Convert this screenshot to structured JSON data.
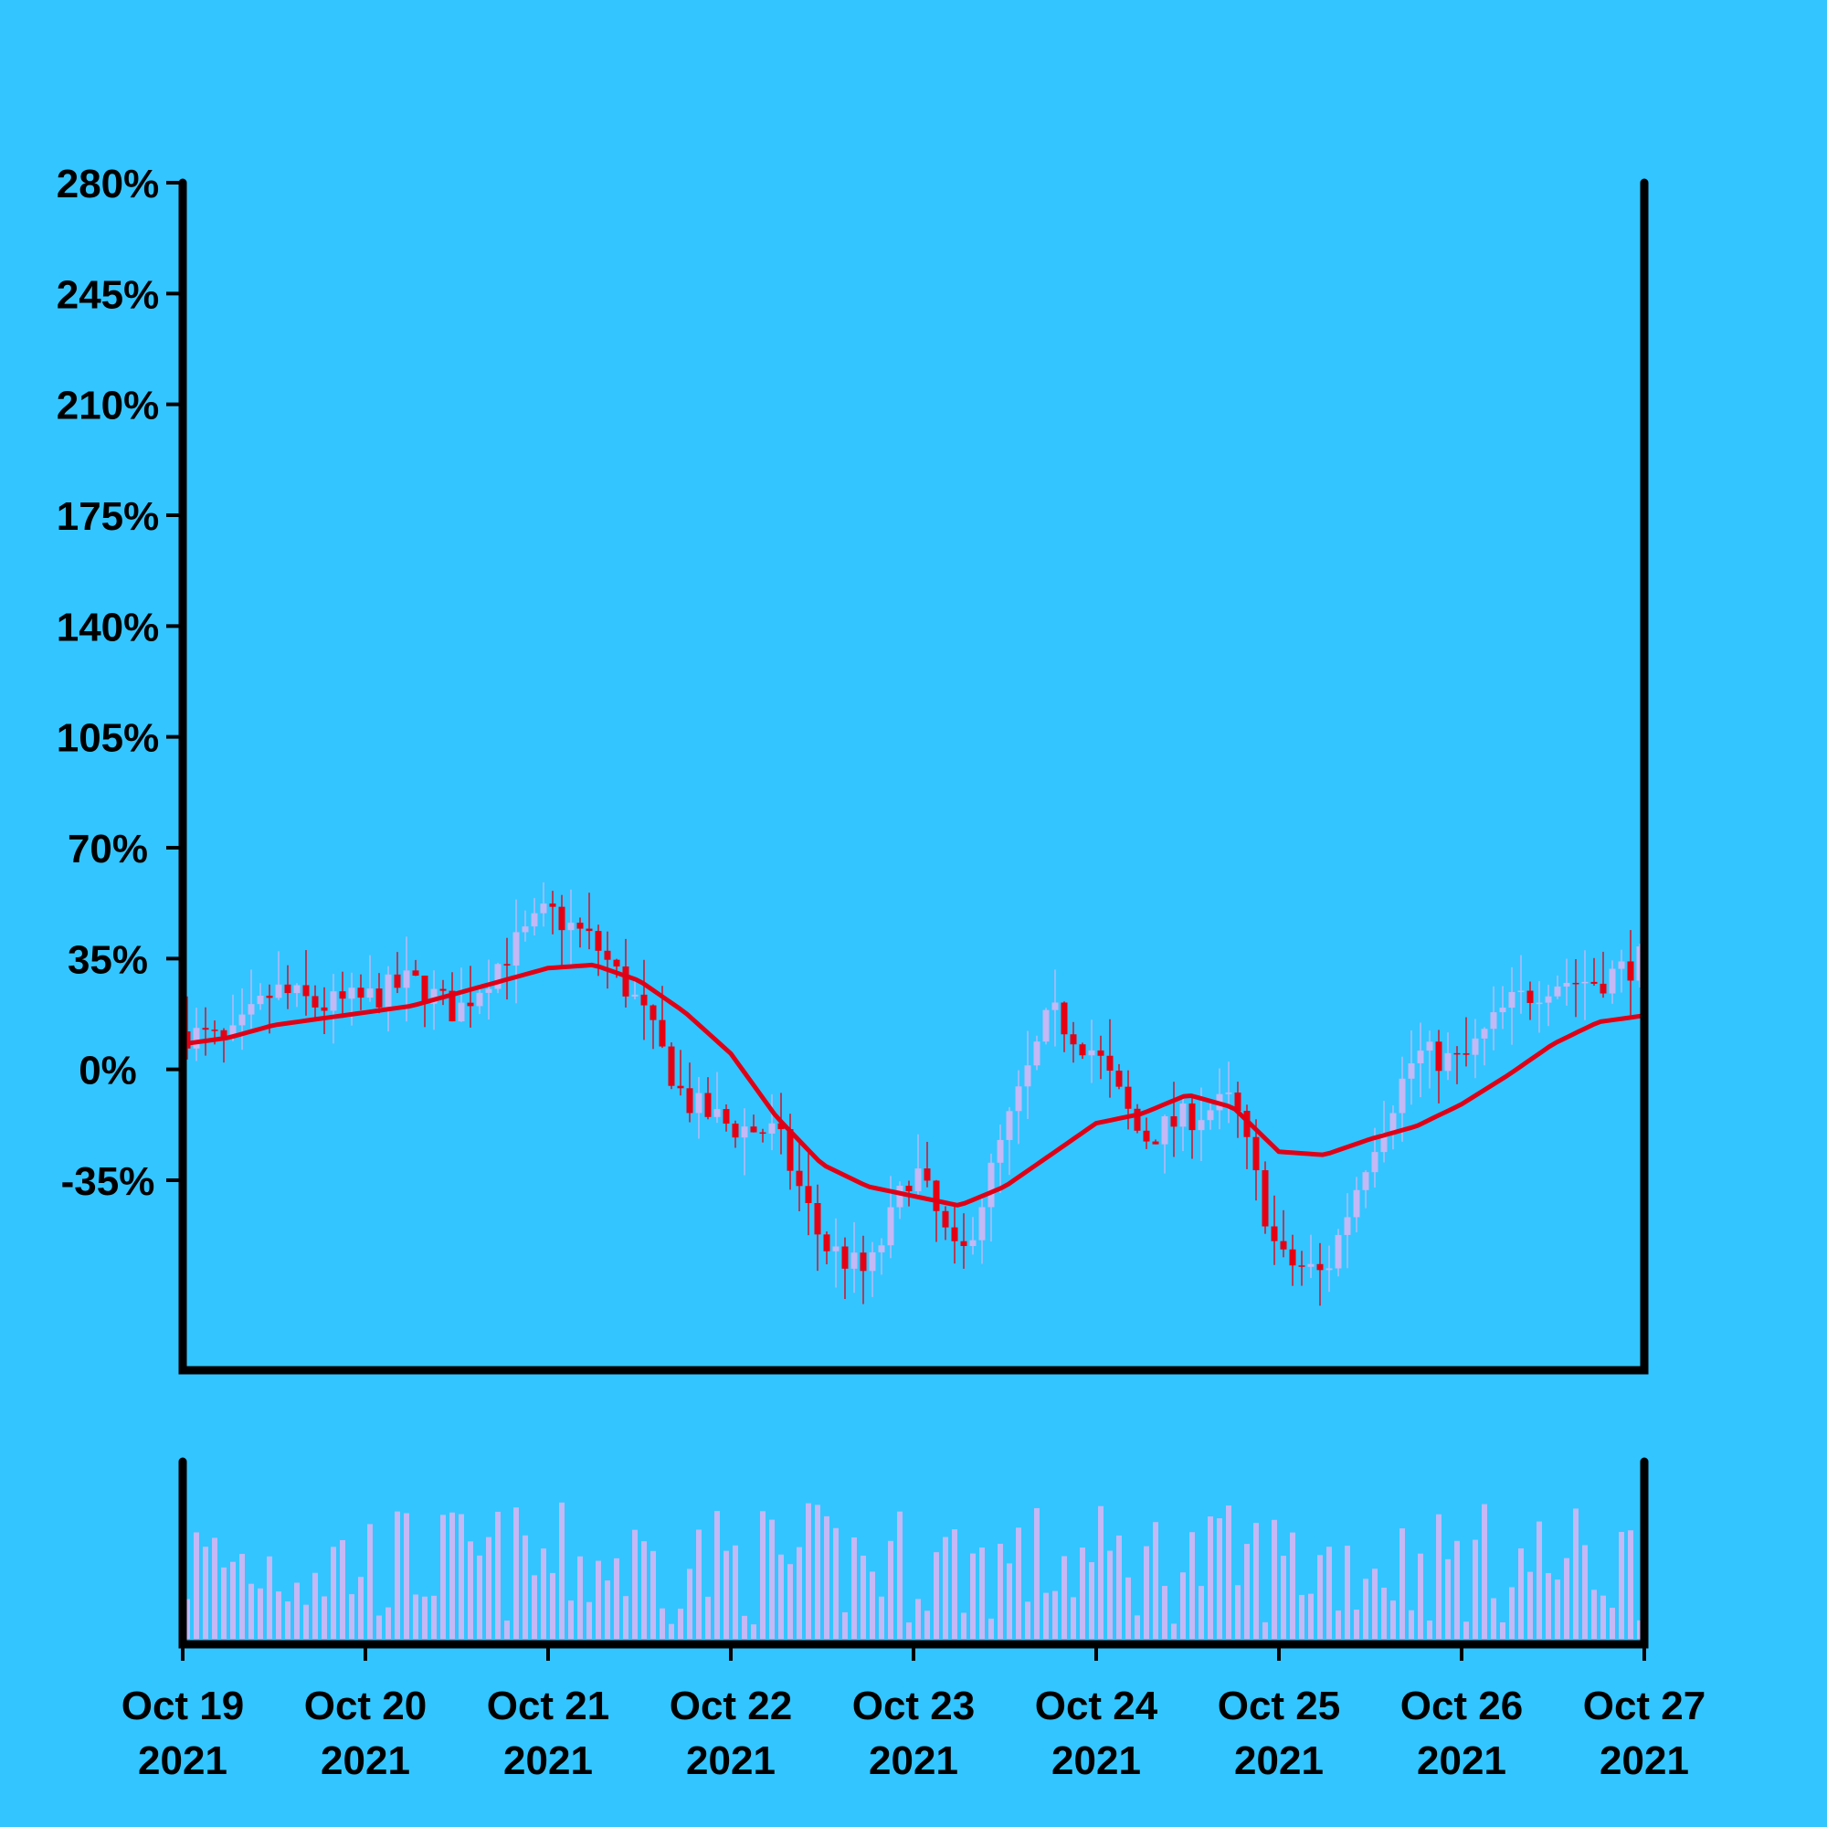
{
  "chart_data": {
    "type": "candlestick",
    "title": "",
    "xlabel": "",
    "ylabel": "",
    "ylim": [
      -95,
      280
    ],
    "y_ticks": [
      "280%",
      "245%",
      "210%",
      "175%",
      "140%",
      "105%",
      "70%",
      "35%",
      "0%",
      "-35%"
    ],
    "y_tick_values": [
      280,
      245,
      210,
      175,
      140,
      105,
      70,
      35,
      0,
      -35
    ],
    "x_range": [
      "2021-10-19",
      "2021-10-27"
    ],
    "x_ticks": [
      {
        "date": "2021-10-19",
        "line1": "Oct 19",
        "line2": "2021"
      },
      {
        "date": "2021-10-20",
        "line1": "Oct 20",
        "line2": "2021"
      },
      {
        "date": "2021-10-21",
        "line1": "Oct 21",
        "line2": "2021"
      },
      {
        "date": "2021-10-22",
        "line1": "Oct 22",
        "line2": "2021"
      },
      {
        "date": "2021-10-23",
        "line1": "Oct 23",
        "line2": "2021"
      },
      {
        "date": "2021-10-24",
        "line1": "Oct 24",
        "line2": "2021"
      },
      {
        "date": "2021-10-25",
        "line1": "Oct 25",
        "line2": "2021"
      },
      {
        "date": "2021-10-26",
        "line1": "Oct 26",
        "line2": "2021"
      },
      {
        "date": "2021-10-27",
        "line1": "Oct 27",
        "line2": "2021"
      }
    ],
    "close_path": [
      [
        "2021-10-19 00:00",
        12
      ],
      [
        "2021-10-19 06:00",
        8
      ],
      [
        "2021-10-19 12:00",
        25
      ],
      [
        "2021-10-19 18:00",
        20
      ],
      [
        "2021-10-20 00:00",
        22
      ],
      [
        "2021-10-20 06:00",
        28
      ],
      [
        "2021-10-20 12:00",
        18
      ],
      [
        "2021-10-20 18:00",
        35
      ],
      [
        "2021-10-21 00:00",
        50
      ],
      [
        "2021-10-21 06:00",
        40
      ],
      [
        "2021-10-21 12:00",
        20
      ],
      [
        "2021-10-21 18:00",
        -10
      ],
      [
        "2021-10-22 00:00",
        -18
      ],
      [
        "2021-10-22 06:00",
        -20
      ],
      [
        "2021-10-22 12:00",
        -55
      ],
      [
        "2021-10-22 18:00",
        -65
      ],
      [
        "2021-10-23 00:00",
        -30
      ],
      [
        "2021-10-23 06:00",
        -62
      ],
      [
        "2021-10-23 12:00",
        -20
      ],
      [
        "2021-10-23 18:00",
        18
      ],
      [
        "2021-10-24 00:00",
        5
      ],
      [
        "2021-10-24 06:00",
        -22
      ],
      [
        "2021-10-24 12:00",
        -15
      ],
      [
        "2021-10-24 18:00",
        -10
      ],
      [
        "2021-10-25 00:00",
        -60
      ],
      [
        "2021-10-25 06:00",
        -65
      ],
      [
        "2021-10-25 12:00",
        -25
      ],
      [
        "2021-10-25 18:00",
        5
      ],
      [
        "2021-10-26 00:00",
        2
      ],
      [
        "2021-10-26 06:00",
        20
      ],
      [
        "2021-10-26 12:00",
        28
      ],
      [
        "2021-10-26 18:00",
        28
      ],
      [
        "2021-10-27 00:00",
        35
      ]
    ],
    "moving_average": [
      [
        "2021-10-19 00:00",
        8
      ],
      [
        "2021-10-19 06:00",
        10
      ],
      [
        "2021-10-19 12:00",
        14
      ],
      [
        "2021-10-19 18:00",
        16
      ],
      [
        "2021-10-20 00:00",
        18
      ],
      [
        "2021-10-20 06:00",
        20
      ],
      [
        "2021-10-20 12:00",
        24
      ],
      [
        "2021-10-20 18:00",
        28
      ],
      [
        "2021-10-21 00:00",
        32
      ],
      [
        "2021-10-21 06:00",
        33
      ],
      [
        "2021-10-21 12:00",
        28
      ],
      [
        "2021-10-21 18:00",
        18
      ],
      [
        "2021-10-22 00:00",
        5
      ],
      [
        "2021-10-22 06:00",
        -15
      ],
      [
        "2021-10-22 12:00",
        -30
      ],
      [
        "2021-10-22 18:00",
        -37
      ],
      [
        "2021-10-23 00:00",
        -40
      ],
      [
        "2021-10-23 06:00",
        -43
      ],
      [
        "2021-10-23 12:00",
        -37
      ],
      [
        "2021-10-23 18:00",
        -27
      ],
      [
        "2021-10-24 00:00",
        -17
      ],
      [
        "2021-10-24 06:00",
        -14
      ],
      [
        "2021-10-24 12:00",
        -8
      ],
      [
        "2021-10-24 18:00",
        -12
      ],
      [
        "2021-10-25 00:00",
        -26
      ],
      [
        "2021-10-25 06:00",
        -27
      ],
      [
        "2021-10-25 12:00",
        -22
      ],
      [
        "2021-10-25 18:00",
        -18
      ],
      [
        "2021-10-26 00:00",
        -11
      ],
      [
        "2021-10-26 06:00",
        -2
      ],
      [
        "2021-10-26 12:00",
        8
      ],
      [
        "2021-10-26 18:00",
        15
      ],
      [
        "2021-10-27 00:00",
        17
      ]
    ],
    "candles_per_day": 20,
    "volume_panel": true,
    "grid": false,
    "legend": "none",
    "colors": {
      "background": "#33c5ff",
      "up": "#c4b8f5",
      "down": "#e60012",
      "moving_average": "#e00016",
      "volume": "#c4b8f5",
      "axis": "#000000"
    }
  }
}
